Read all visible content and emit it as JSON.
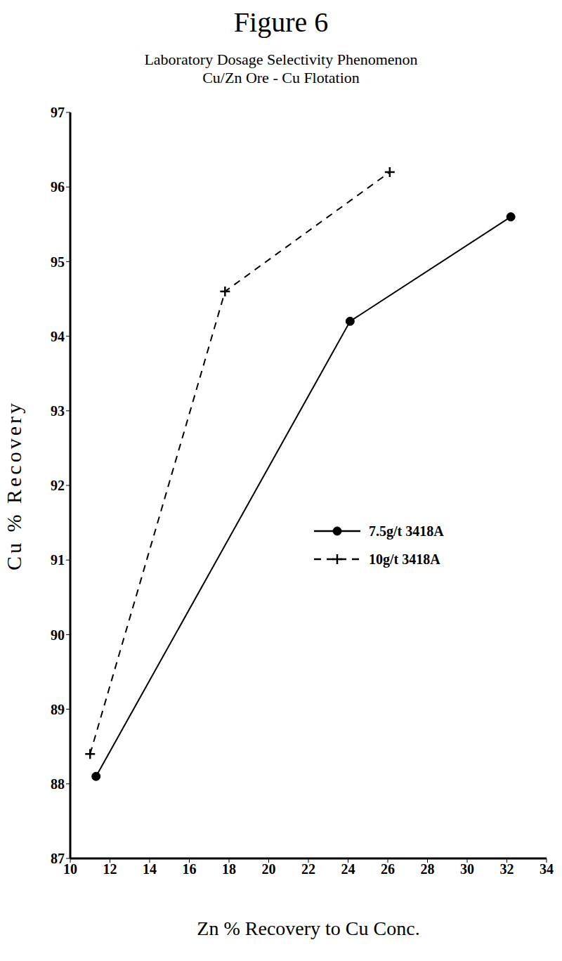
{
  "chart_data": {
    "type": "line",
    "title": "Figure 6",
    "subtitle": [
      "Laboratory Dosage Selectivity Phenomenon",
      "Cu/Zn Ore - Cu Flotation"
    ],
    "x_label": "Zn % Recovery to Cu Conc.",
    "y_label": "Cu % Recovery",
    "xlim": [
      10,
      34
    ],
    "xticks": [
      10,
      12,
      14,
      16,
      18,
      20,
      22,
      24,
      26,
      28,
      30,
      32,
      34
    ],
    "ylim": [
      87,
      97
    ],
    "yticks": [
      87,
      88,
      89,
      90,
      91,
      92,
      93,
      94,
      95,
      96,
      97
    ],
    "grid": false,
    "legend": "right",
    "series": [
      {
        "name": "7.5g/t 3418A",
        "color": "#000000",
        "marker": "circle",
        "line_style": "solid",
        "x": [
          11.3,
          24.1,
          32.2
        ],
        "values": [
          88.1,
          94.2,
          95.6
        ]
      },
      {
        "name": "10g/t 3418A",
        "color": "#000000",
        "marker": "plus",
        "line_style": "dashed",
        "x": [
          11.0,
          17.8,
          26.1
        ],
        "values": [
          88.4,
          94.6,
          96.2
        ]
      }
    ]
  }
}
